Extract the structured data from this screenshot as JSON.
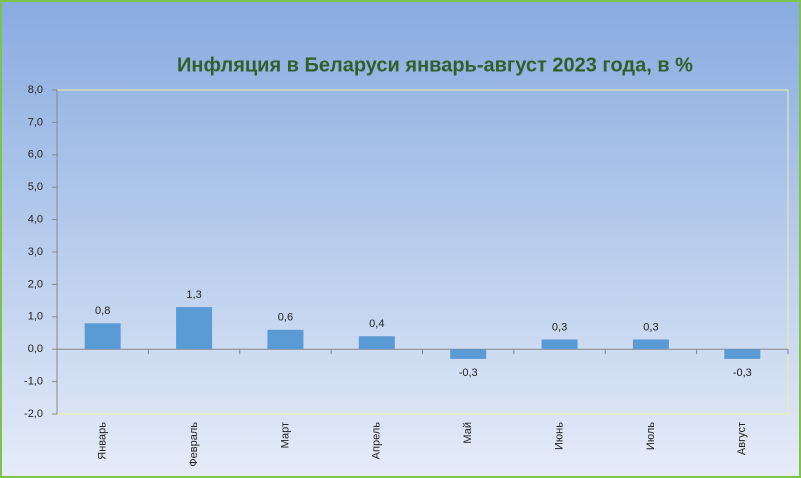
{
  "chart_data": {
    "type": "bar",
    "title": "Инфляция в Беларуси январь-август 2023 года, в %",
    "categories": [
      "Январь",
      "Февраль",
      "Март",
      "Апрель",
      "Май",
      "Июнь",
      "Июль",
      "Август"
    ],
    "values": [
      0.8,
      1.3,
      0.6,
      0.4,
      -0.3,
      0.3,
      0.3,
      -0.3
    ],
    "value_labels": [
      "0,8",
      "1,3",
      "0,6",
      "0,4",
      "-0,3",
      "0,3",
      "0,3",
      "-0,3"
    ],
    "color": "#5b9bd5",
    "ylim": [
      -2,
      8
    ],
    "yticks": [
      {
        "value": -2,
        "label": "-2,0"
      },
      {
        "value": -1,
        "label": "-1,0"
      },
      {
        "value": 0,
        "label": "0,0"
      },
      {
        "value": 1,
        "label": "1,0"
      },
      {
        "value": 2,
        "label": "2,0"
      },
      {
        "value": 3,
        "label": "3,0"
      },
      {
        "value": 4,
        "label": "4,0"
      },
      {
        "value": 5,
        "label": "5,0"
      },
      {
        "value": 6,
        "label": "6,0"
      },
      {
        "value": 7,
        "label": "7,0"
      },
      {
        "value": 8,
        "label": "8,0"
      }
    ],
    "grid": false
  }
}
